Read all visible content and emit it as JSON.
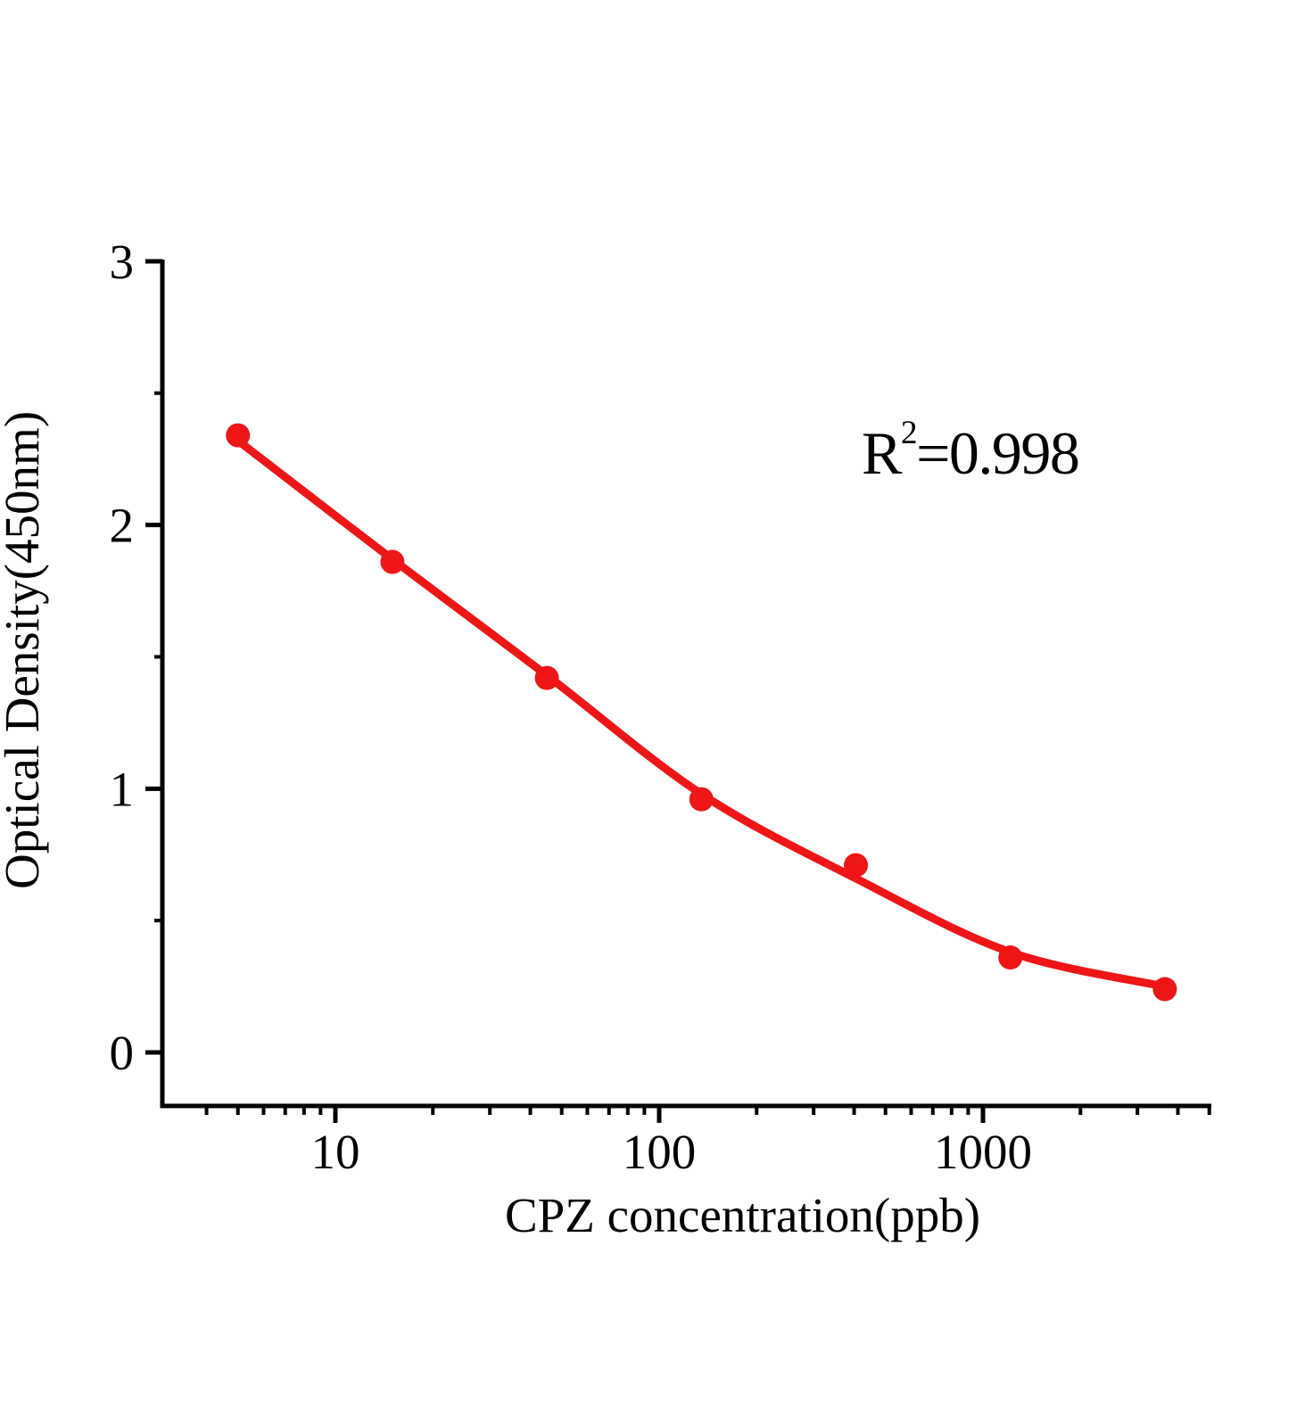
{
  "figure": {
    "background": "#ffffff",
    "xlabel": "CPZ concentration(ppb)",
    "ylabel": "Optical Density(450nm)",
    "annotation": {
      "base": "R",
      "sup": "2",
      "rest": "=0.998"
    }
  },
  "chart_data": {
    "type": "scatter",
    "title": "",
    "xlabel": "CPZ concentration(ppb)",
    "ylabel": "Optical Density(450nm)",
    "x_scale": "log",
    "y_scale": "linear",
    "xlim": [
      3,
      5000
    ],
    "ylim": [
      -0.2,
      3
    ],
    "grid": false,
    "legend": "none",
    "marker": "circle",
    "line": "smooth-fit-curve",
    "series_color": "#ee1616",
    "axis_color": "#000000",
    "r_squared_text": "R²=0.998",
    "r_squared": 0.998,
    "x": [
      5,
      15,
      45,
      135,
      405,
      1215,
      3645
    ],
    "y": [
      2.34,
      1.86,
      1.42,
      0.96,
      0.71,
      0.36,
      0.24
    ],
    "fit_y": [
      2.32,
      1.87,
      1.43,
      0.98,
      0.66,
      0.38,
      0.25
    ],
    "x_major_ticks": [
      {
        "value": 10,
        "label": "10"
      },
      {
        "value": 100,
        "label": "100"
      },
      {
        "value": 1000,
        "label": "1000"
      }
    ],
    "x_minor_ticks": [
      4,
      5,
      6,
      7,
      8,
      9,
      20,
      30,
      40,
      50,
      60,
      70,
      80,
      90,
      200,
      300,
      400,
      500,
      600,
      700,
      800,
      900,
      2000,
      3000,
      4000,
      5000
    ],
    "y_major_ticks": [
      {
        "value": 0,
        "label": "0"
      },
      {
        "value": 1,
        "label": "1"
      },
      {
        "value": 2,
        "label": "2"
      },
      {
        "value": 3,
        "label": "3"
      }
    ],
    "y_minor_ticks": [
      0.5,
      1.5,
      2.5
    ]
  }
}
